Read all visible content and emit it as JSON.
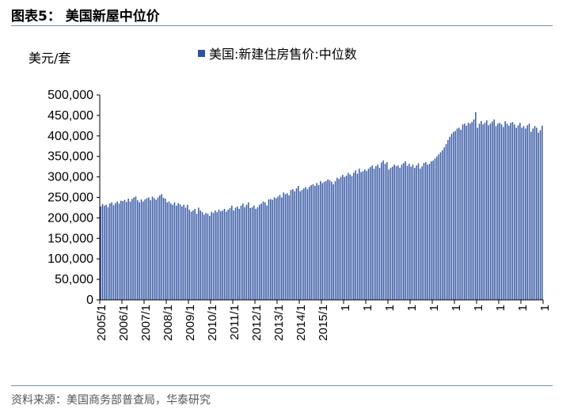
{
  "figure": {
    "title": "图表5：  美国新屋中位价",
    "source": "资料来源：美国商务部普查局，华泰研究"
  },
  "chart_data": {
    "type": "bar",
    "unit_label": "美元/套",
    "legend": [
      {
        "name": "美国:新建住房售价:中位数",
        "color": "#2f52a0"
      }
    ],
    "ylim": [
      0,
      500000
    ],
    "yticks": [
      "0",
      "50,000",
      "100,000",
      "150,000",
      "200,000",
      "250,000",
      "300,000",
      "350,000",
      "400,000",
      "450,000",
      "500,000"
    ],
    "xticks": [
      "2005/1",
      "2006/1",
      "2007/1",
      "2008/1",
      "2009/1",
      "2010/1",
      "2011/1",
      "2012/1",
      "2013/1",
      "2014/1",
      "2015/1",
      "1",
      "1",
      "1",
      "1",
      "1",
      "1",
      "1",
      "1",
      "1",
      "1"
    ],
    "series": [
      {
        "name": "美国:新建住房售价:中位数",
        "start": "2005/1",
        "frequency": "monthly",
        "values": [
          228000,
          234000,
          230000,
          232000,
          226000,
          235000,
          238000,
          231000,
          236000,
          240000,
          235000,
          242000,
          241000,
          244000,
          239000,
          247000,
          240000,
          246000,
          250000,
          252000,
          243000,
          238000,
          245000,
          240000,
          245000,
          248000,
          250000,
          243000,
          252000,
          248000,
          244000,
          250000,
          255000,
          258000,
          249000,
          247000,
          238000,
          240000,
          235000,
          232000,
          238000,
          230000,
          236000,
          233000,
          228000,
          232000,
          225000,
          232000,
          220000,
          215000,
          218000,
          222000,
          210000,
          225000,
          218000,
          214000,
          208000,
          212000,
          210000,
          205000,
          215000,
          212000,
          218000,
          214000,
          220000,
          216000,
          218000,
          222000,
          215000,
          220000,
          224000,
          230000,
          218000,
          225000,
          228000,
          222000,
          230000,
          235000,
          226000,
          232000,
          238000,
          224000,
          226000,
          230000,
          222000,
          226000,
          232000,
          235000,
          240000,
          238000,
          230000,
          245000,
          246000,
          244000,
          250000,
          248000,
          252000,
          256000,
          250000,
          262000,
          258000,
          260000,
          255000,
          268000,
          270000,
          265000,
          272000,
          278000,
          265000,
          268000,
          272000,
          275000,
          270000,
          276000,
          280000,
          282000,
          278000,
          285000,
          280000,
          290000,
          285000,
          288000,
          290000,
          294000,
          292000,
          288000,
          282000,
          290000,
          298000,
          295000,
          300000,
          305000,
          300000,
          303000,
          310000,
          306000,
          302000,
          310000,
          316000,
          308000,
          320000,
          312000,
          314000,
          318000,
          315000,
          320000,
          324000,
          328000,
          320000,
          326000,
          330000,
          322000,
          335000,
          340000,
          332000,
          336000,
          318000,
          322000,
          325000,
          330000,
          326000,
          328000,
          322000,
          330000,
          334000,
          338000,
          327000,
          332000,
          325000,
          330000,
          322000,
          328000,
          333000,
          320000,
          326000,
          334000,
          336000,
          330000,
          332000,
          338000,
          340000,
          345000,
          350000,
          355000,
          360000,
          365000,
          372000,
          380000,
          390000,
          398000,
          405000,
          410000,
          412000,
          418000,
          420000,
          415000,
          428000,
          430000,
          425000,
          432000,
          430000,
          434000,
          440000,
          458000,
          420000,
          430000,
          436000,
          428000,
          432000,
          438000,
          426000,
          430000,
          435000,
          440000,
          424000,
          430000,
          432000,
          428000,
          422000,
          436000,
          430000,
          425000,
          432000,
          434000,
          428000,
          420000,
          426000,
          432000,
          420000,
          424000,
          418000,
          426000,
          430000,
          410000,
          418000,
          424000,
          420000,
          408000,
          414000,
          425000
        ]
      }
    ]
  }
}
